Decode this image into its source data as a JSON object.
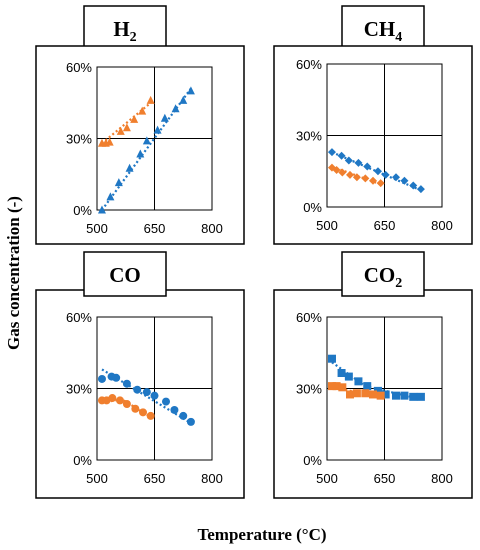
{
  "figure": {
    "ylabel": "Gas concentration (-)",
    "xlabel": "Temperature (°C)",
    "colors": {
      "blue": "#1f77c4",
      "orange": "#f07f2e"
    }
  },
  "chart_data": [
    {
      "type": "scatter",
      "title": "H2",
      "title_text": "H",
      "title_sub": "2",
      "xlim": [
        500,
        800
      ],
      "ylim": [
        0,
        60
      ],
      "x_ticks": [
        "500",
        "650",
        "800"
      ],
      "y_ticks": [
        "0%",
        "30%",
        "60%"
      ],
      "series": [
        {
          "color": "orange",
          "marker": "triangle",
          "x": [
            513,
            523,
            533,
            562,
            578,
            597,
            618,
            640
          ],
          "y": [
            28,
            28,
            28.5,
            33,
            34.5,
            38,
            41.5,
            46
          ],
          "trend": [
            [
              513,
              28
            ],
            [
              640,
              45
            ]
          ]
        },
        {
          "color": "blue",
          "marker": "triangle",
          "x": [
            513,
            535,
            557,
            585,
            613,
            630,
            658,
            677,
            705,
            725,
            745
          ],
          "y": [
            0,
            5.5,
            11.5,
            17.5,
            23.5,
            29,
            33.5,
            38.5,
            42.5,
            46,
            50
          ],
          "trend": [
            [
              513,
              0
            ],
            [
              745,
              51
            ]
          ]
        }
      ]
    },
    {
      "type": "scatter",
      "title": "CH4",
      "title_text": "CH",
      "title_sub": "4",
      "xlim": [
        500,
        800
      ],
      "ylim": [
        0,
        60
      ],
      "x_ticks": [
        "500",
        "650",
        "800"
      ],
      "y_ticks": [
        "0%",
        "30%",
        "60%"
      ],
      "series": [
        {
          "color": "blue",
          "marker": "diamond",
          "x": [
            513,
            538,
            557,
            582,
            605,
            633,
            653,
            680,
            702,
            725,
            745
          ],
          "y": [
            23,
            21.5,
            19.5,
            18.5,
            17,
            15,
            13.5,
            12.5,
            11,
            9,
            7.5
          ],
          "trend": [
            [
              513,
              23
            ],
            [
              745,
              7
            ]
          ]
        },
        {
          "color": "orange",
          "marker": "diamond",
          "x": [
            513,
            525,
            540,
            560,
            578,
            600,
            620,
            640
          ],
          "y": [
            16.5,
            15.5,
            14.5,
            13.5,
            12.5,
            12,
            11,
            10
          ],
          "trend": [
            [
              513,
              17
            ],
            [
              640,
              9.5
            ]
          ]
        }
      ]
    },
    {
      "type": "scatter",
      "title": "CO",
      "title_text": "CO",
      "title_sub": "",
      "xlim": [
        500,
        800
      ],
      "ylim": [
        0,
        60
      ],
      "x_ticks": [
        "500",
        "650",
        "800"
      ],
      "y_ticks": [
        "0%",
        "30%",
        "60%"
      ],
      "series": [
        {
          "color": "blue",
          "marker": "circle",
          "x": [
            513,
            538,
            550,
            578,
            605,
            630,
            650,
            680,
            702,
            725,
            745
          ],
          "y": [
            34,
            35,
            34.5,
            32,
            29.5,
            28.5,
            27,
            24.5,
            21,
            18.5,
            16
          ],
          "trend": [
            [
              513,
              38
            ],
            [
              745,
              15.5
            ]
          ]
        },
        {
          "color": "orange",
          "marker": "circle",
          "x": [
            513,
            525,
            540,
            560,
            578,
            600,
            620,
            640
          ],
          "y": [
            25,
            25,
            26,
            25,
            23.5,
            21.5,
            20,
            18.5
          ],
          "trend": [
            [
              513,
              24
            ],
            [
              565,
              25.5
            ],
            [
              640,
              18
            ]
          ]
        }
      ]
    },
    {
      "type": "scatter",
      "title": "CO2",
      "title_text": "CO",
      "title_sub": "2",
      "xlim": [
        500,
        800
      ],
      "ylim": [
        0,
        60
      ],
      "x_ticks": [
        "500",
        "650",
        "800"
      ],
      "y_ticks": [
        "0%",
        "30%",
        "60%"
      ],
      "series": [
        {
          "color": "blue",
          "marker": "square",
          "x": [
            513,
            538,
            557,
            582,
            605,
            633,
            653,
            680,
            702,
            725,
            745
          ],
          "y": [
            42.5,
            36.5,
            35,
            33,
            31,
            29,
            27.5,
            27,
            27,
            26.5,
            26.5
          ],
          "trend": [
            [
              513,
              41
            ],
            [
              600,
              31
            ],
            [
              745,
              25.5
            ]
          ]
        },
        {
          "color": "orange",
          "marker": "square",
          "x": [
            513,
            525,
            540,
            560,
            578,
            600,
            620,
            640
          ],
          "y": [
            31,
            31,
            30.5,
            27.5,
            28,
            28,
            27.5,
            27
          ],
          "trend": [
            [
              513,
              30.5
            ],
            [
              640,
              26.5
            ]
          ]
        }
      ]
    }
  ]
}
